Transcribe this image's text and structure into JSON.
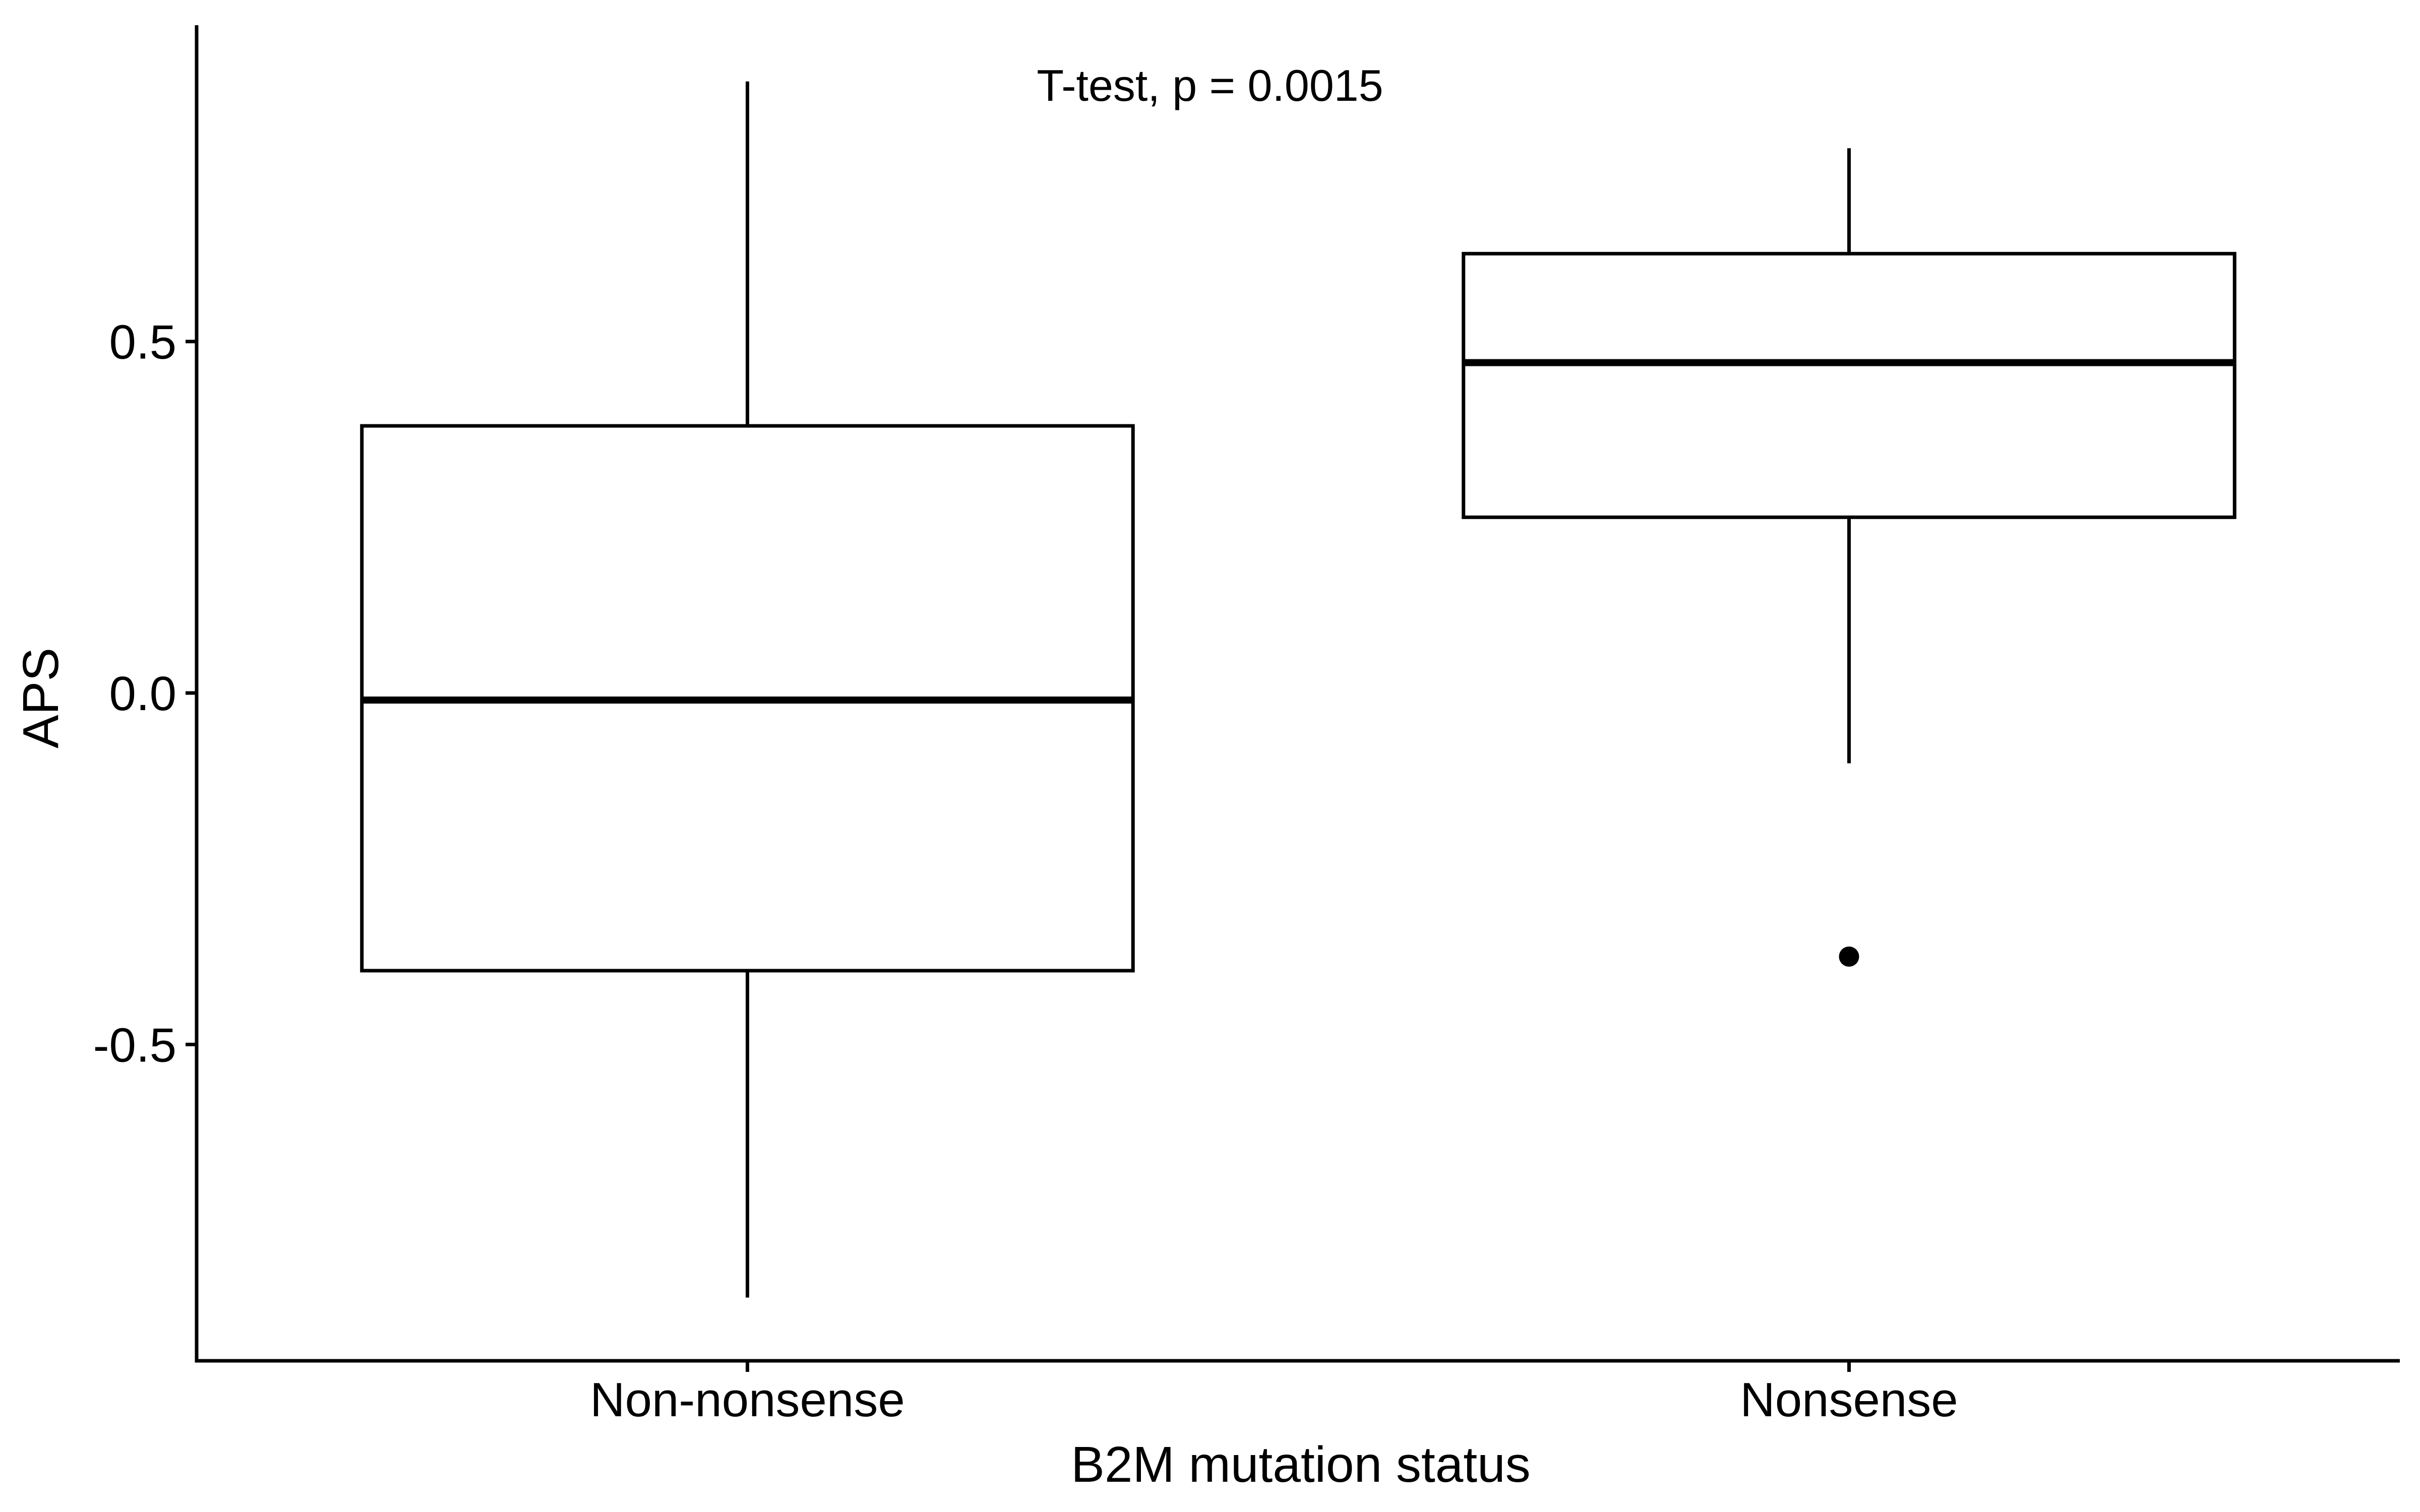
{
  "chart_data": {
    "type": "boxplot",
    "annotation": "T-test, p = 0.0015",
    "xlabel": "B2M mutation status",
    "ylabel": "APS",
    "ylim": [
      -0.95,
      0.95
    ],
    "yticks": [
      {
        "value": 0.5,
        "label": "0.5"
      },
      {
        "value": 0.0,
        "label": "0.0"
      },
      {
        "value": -0.5,
        "label": "-0.5"
      }
    ],
    "categories": [
      "Non-nonsense",
      "Nonsense"
    ],
    "boxes": [
      {
        "category": "Non-nonsense",
        "whisker_low": -0.86,
        "q1": -0.395,
        "median": -0.01,
        "q3": 0.38,
        "whisker_high": 0.87,
        "outliers": []
      },
      {
        "category": "Nonsense",
        "whisker_low": -0.1,
        "q1": 0.25,
        "median": 0.47,
        "q3": 0.625,
        "whisker_high": 0.775,
        "outliers": [
          -0.375
        ]
      }
    ],
    "grid": false,
    "legend": "none",
    "colors": {
      "line": "#000000",
      "box_fill": "#ffffff"
    }
  }
}
